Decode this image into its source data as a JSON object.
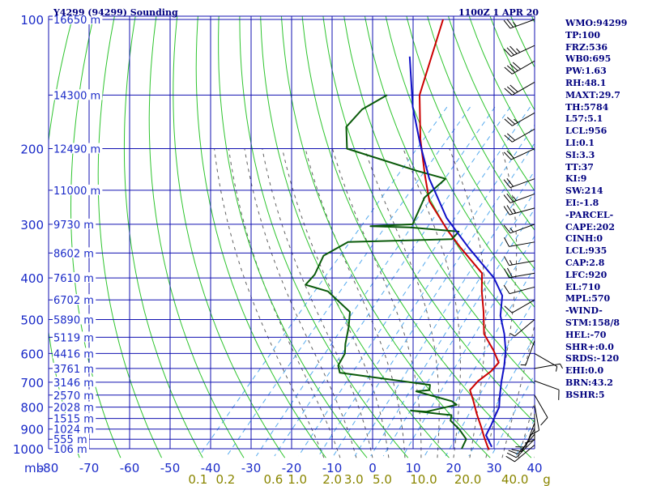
{
  "header": {
    "station": "Y4299 (94299) Sounding",
    "time": "1100Z  1 APR 20"
  },
  "stats": [
    "WMO:94299",
    "TP:100",
    "FRZ:536",
    "WB0:695",
    "PW:1.63",
    "RH:48.1",
    "MAXT:29.7",
    "TH:5784",
    "L57:5.1",
    "LCL:956",
    "LI:0.1",
    "SI:3.3",
    "TT:37",
    "KI:9",
    "SW:214",
    "EI:-1.8",
    "-PARCEL-",
    "CAPE:202",
    "CINH:0",
    "LCL:935",
    "CAP:2.8",
    "LFC:920",
    "EL:710",
    "MPL:570",
    "-WIND-",
    "STM:158/8",
    "HEL:-70",
    "SHR+:0.0",
    "SRDS:-120",
    "EHI:0.0",
    "BRN:43.2",
    "BSHR:5"
  ],
  "colors": {
    "grid": "#1010b0",
    "dry_adiabat": "#2ec42e",
    "moist_adiabat": "#606060",
    "mixing_ratio": "#55aaee",
    "temperature": "#cc0000",
    "dewpoint": "#0a5a0a",
    "parcel": "#1010c8",
    "label": "#1a2ac8",
    "mixing_label": "#8a8600"
  },
  "chart_data": {
    "type": "line",
    "x_axis_prefix": "mb",
    "xlim": [
      -80,
      40
    ],
    "x_ticks": [
      "-80",
      "-70",
      "-60",
      "-50",
      "-40",
      "-30",
      "-20",
      "-10",
      "0",
      "10",
      "20",
      "30",
      "40"
    ],
    "pressure_levels": [
      100,
      150,
      200,
      250,
      300,
      350,
      400,
      450,
      500,
      550,
      600,
      650,
      700,
      750,
      800,
      850,
      900,
      950,
      1000
    ],
    "pressure_labels": [
      "100",
      "200",
      "300",
      "400",
      "500",
      "600",
      "700",
      "800",
      "900",
      "1000"
    ],
    "height_labels": [
      {
        "p": 100,
        "text": "16650 m"
      },
      {
        "p": 150,
        "text": "14300 m"
      },
      {
        "p": 200,
        "text": "12490 m"
      },
      {
        "p": 250,
        "text": "11000 m"
      },
      {
        "p": 300,
        "text": "9730 m"
      },
      {
        "p": 350,
        "text": "8602 m"
      },
      {
        "p": 400,
        "text": "7610 m"
      },
      {
        "p": 450,
        "text": "6702 m"
      },
      {
        "p": 500,
        "text": "5890 m"
      },
      {
        "p": 550,
        "text": "5119 m"
      },
      {
        "p": 600,
        "text": "4416 m"
      },
      {
        "p": 650,
        "text": "3761 m"
      },
      {
        "p": 700,
        "text": "3146 m"
      },
      {
        "p": 750,
        "text": "2570 m"
      },
      {
        "p": 800,
        "text": "2028 m"
      },
      {
        "p": 850,
        "text": "1515 m"
      },
      {
        "p": 900,
        "text": "1024 m"
      },
      {
        "p": 950,
        "text": "555 m"
      },
      {
        "p": 1000,
        "text": "106 m"
      }
    ],
    "mixing_ratio_labels": [
      {
        "w": 0.1,
        "text": "0.1"
      },
      {
        "w": 0.2,
        "text": "0.2"
      },
      {
        "w": 0.6,
        "text": "0.6"
      },
      {
        "w": 1.0,
        "text": "1.0"
      },
      {
        "w": 2.0,
        "text": "2.0"
      },
      {
        "w": 3.0,
        "text": "3.0"
      },
      {
        "w": 5.0,
        "text": "5.0"
      },
      {
        "w": 10.0,
        "text": "10.0"
      },
      {
        "w": 20.0,
        "text": "20.0"
      },
      {
        "w": 40.0,
        "text": "40.0"
      },
      {
        "w": 0,
        "text": "g"
      }
    ],
    "series": [
      {
        "key": "temperature",
        "points": [
          [
            -80,
            100
          ],
          [
            -69,
            150
          ],
          [
            -59,
            190
          ],
          [
            -50,
            230
          ],
          [
            -43,
            265
          ],
          [
            -32,
            310
          ],
          [
            -25,
            340
          ],
          [
            -14,
            390
          ],
          [
            -10,
            430
          ],
          [
            -5,
            480
          ],
          [
            0,
            540
          ],
          [
            6,
            590
          ],
          [
            10,
            630
          ],
          [
            10,
            660
          ],
          [
            9,
            695
          ],
          [
            9,
            730
          ],
          [
            12,
            770
          ],
          [
            16,
            830
          ],
          [
            20,
            890
          ],
          [
            23,
            940
          ],
          [
            26,
            990
          ],
          [
            27,
            1005
          ]
        ]
      },
      {
        "key": "dewpoint",
        "points": [
          [
            -77,
            150
          ],
          [
            -80,
            162
          ],
          [
            -80,
            178
          ],
          [
            -75,
            200
          ],
          [
            -53,
            225
          ],
          [
            -44,
            235
          ],
          [
            -45,
            260
          ],
          [
            -42,
            300
          ],
          [
            -52,
            303
          ],
          [
            -42,
            305
          ],
          [
            -29,
            312
          ],
          [
            -29,
            325
          ],
          [
            -54,
            330
          ],
          [
            -57,
            355
          ],
          [
            -55,
            393
          ],
          [
            -55,
            415
          ],
          [
            -48,
            430
          ],
          [
            -38,
            480
          ],
          [
            -35,
            520
          ],
          [
            -32,
            570
          ],
          [
            -30,
            600
          ],
          [
            -29,
            640
          ],
          [
            -27,
            665
          ],
          [
            -2,
            710
          ],
          [
            -1,
            730
          ],
          [
            -4,
            735
          ],
          [
            7,
            775
          ],
          [
            9,
            790
          ],
          [
            3,
            820
          ],
          [
            -1,
            815
          ],
          [
            7,
            830
          ],
          [
            10,
            835
          ],
          [
            11,
            860
          ],
          [
            15,
            900
          ],
          [
            19,
            950
          ],
          [
            20,
            1000
          ]
        ]
      },
      {
        "key": "parcel",
        "points": [
          [
            -80,
            122
          ],
          [
            -68,
            160
          ],
          [
            -58,
            195
          ],
          [
            -48,
            235
          ],
          [
            -35,
            290
          ],
          [
            -23,
            340
          ],
          [
            -10,
            400
          ],
          [
            -4,
            440
          ],
          [
            0,
            490
          ],
          [
            5,
            540
          ],
          [
            9,
            590
          ],
          [
            12,
            640
          ],
          [
            15,
            700
          ],
          [
            18,
            760
          ],
          [
            20,
            800
          ],
          [
            21,
            840
          ],
          [
            22,
            880
          ],
          [
            23,
            930
          ],
          [
            27,
            990
          ]
        ]
      }
    ],
    "winds": [
      {
        "p": 100,
        "dir": 250,
        "spd": 25
      },
      {
        "p": 115,
        "dir": 245,
        "spd": 35
      },
      {
        "p": 125,
        "dir": 240,
        "spd": 40
      },
      {
        "p": 140,
        "dir": 240,
        "spd": 30
      },
      {
        "p": 165,
        "dir": 240,
        "spd": 25
      },
      {
        "p": 180,
        "dir": 240,
        "spd": 20
      },
      {
        "p": 200,
        "dir": 245,
        "spd": 20
      },
      {
        "p": 235,
        "dir": 250,
        "spd": 20
      },
      {
        "p": 255,
        "dir": 250,
        "spd": 25
      },
      {
        "p": 275,
        "dir": 255,
        "spd": 25
      },
      {
        "p": 300,
        "dir": 250,
        "spd": 15
      },
      {
        "p": 330,
        "dir": 260,
        "spd": 10
      },
      {
        "p": 365,
        "dir": 260,
        "spd": 15
      },
      {
        "p": 390,
        "dir": 260,
        "spd": 20
      },
      {
        "p": 420,
        "dir": 255,
        "spd": 10
      },
      {
        "p": 450,
        "dir": 240,
        "spd": 10
      },
      {
        "p": 500,
        "dir": 230,
        "spd": 5
      },
      {
        "p": 560,
        "dir": 200,
        "spd": 5
      },
      {
        "p": 600,
        "dir": 120,
        "spd": 5
      },
      {
        "p": 650,
        "dir": 80,
        "spd": 5
      },
      {
        "p": 695,
        "dir": 110,
        "spd": 10
      },
      {
        "p": 750,
        "dir": 150,
        "spd": 10
      },
      {
        "p": 790,
        "dir": 170,
        "spd": 10
      },
      {
        "p": 830,
        "dir": 180,
        "spd": 10
      },
      {
        "p": 870,
        "dir": 200,
        "spd": 10
      },
      {
        "p": 900,
        "dir": 210,
        "spd": 10
      },
      {
        "p": 925,
        "dir": 220,
        "spd": 10
      },
      {
        "p": 950,
        "dir": 225,
        "spd": 10
      },
      {
        "p": 980,
        "dir": 230,
        "spd": 10
      }
    ]
  }
}
